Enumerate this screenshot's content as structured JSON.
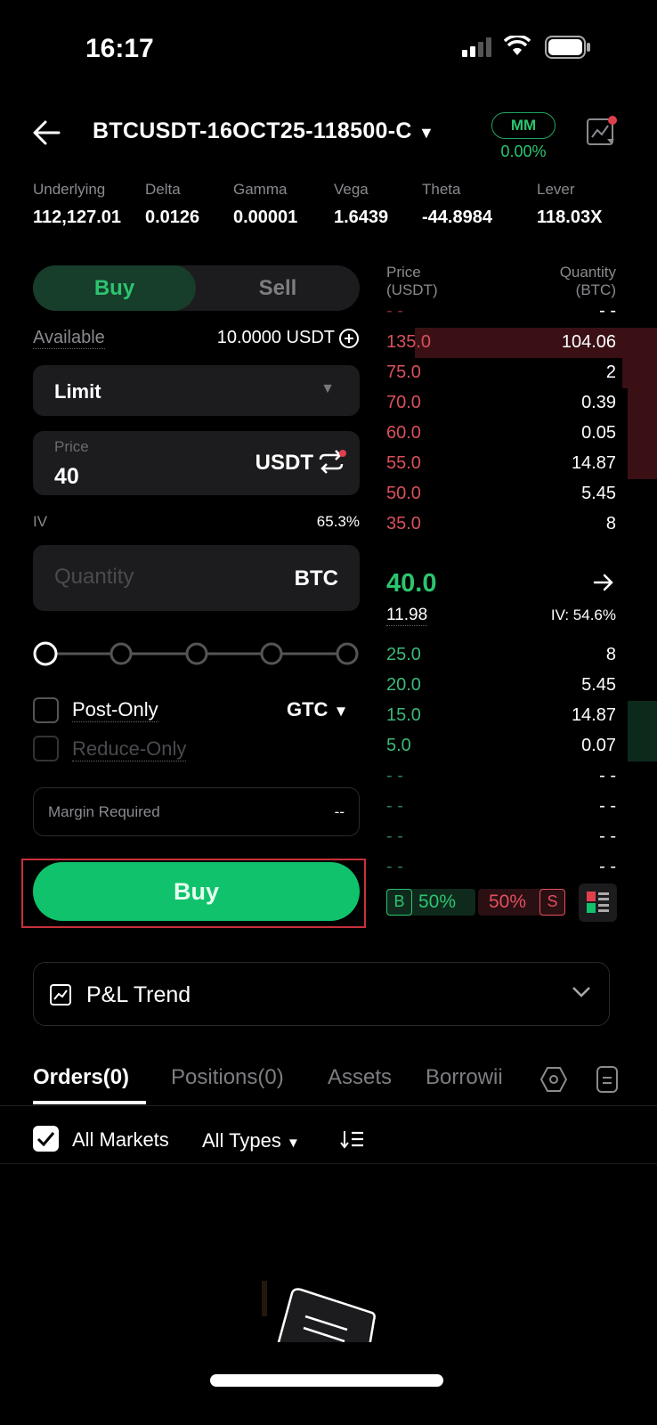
{
  "status_bar": {
    "time": "16:17"
  },
  "header": {
    "title": "BTCUSDT-16OCT25-118500-C",
    "mm_label": "MM",
    "mm_value": "0.00%"
  },
  "greeks": [
    {
      "label": "Underlying",
      "value": "112,127.01"
    },
    {
      "label": "Delta",
      "value": "0.0126"
    },
    {
      "label": "Gamma",
      "value": "0.00001"
    },
    {
      "label": "Vega",
      "value": "1.6439"
    },
    {
      "label": "Theta",
      "value": "-44.8984"
    },
    {
      "label": "Lever",
      "value": "118.03X"
    }
  ],
  "order_form": {
    "buy_tab": "Buy",
    "sell_tab": "Sell",
    "available_label": "Available",
    "available_value": "10.0000 USDT",
    "order_type": "Limit",
    "price_label": "Price",
    "price_value": "40",
    "price_unit": "USDT",
    "iv_label": "IV",
    "iv_value": "65.3%",
    "quantity_placeholder": "Quantity",
    "quantity_unit": "BTC",
    "slider_percent": 0,
    "post_only": "Post-Only",
    "reduce_only": "Reduce-Only",
    "tif": "GTC",
    "margin_label": "Margin Required",
    "margin_value": "--",
    "submit": "Buy"
  },
  "orderbook": {
    "price_header": "Price\n(USDT)",
    "qty_header": "Quantity\n(BTC)",
    "asks": [
      {
        "price": "- -",
        "qty": "- -",
        "depth": 0
      },
      {
        "price": "135.0",
        "qty": "104.06",
        "depth": 1.0
      },
      {
        "price": "75.0",
        "qty": "2",
        "depth": 0.19
      },
      {
        "price": "70.0",
        "qty": "0.39",
        "depth": 0.17
      },
      {
        "price": "60.0",
        "qty": "0.05",
        "depth": 0.17
      },
      {
        "price": "55.0",
        "qty": "14.87",
        "depth": 0.17
      },
      {
        "price": "50.0",
        "qty": "5.45",
        "depth": 0.05
      },
      {
        "price": "35.0",
        "qty": "8",
        "depth": 0.01
      }
    ],
    "last_price": "40.0",
    "mark_price": "11.98",
    "iv": "IV: 54.6%",
    "bids": [
      {
        "price": "25.0",
        "qty": "8",
        "depth": 0.01
      },
      {
        "price": "20.0",
        "qty": "5.45",
        "depth": 0.05
      },
      {
        "price": "15.0",
        "qty": "14.87",
        "depth": 0.17
      },
      {
        "price": "5.0",
        "qty": "0.07",
        "depth": 0.17
      },
      {
        "price": "- -",
        "qty": "- -",
        "depth": 0
      },
      {
        "price": "- -",
        "qty": "- -",
        "depth": 0
      },
      {
        "price": "- -",
        "qty": "- -",
        "depth": 0
      },
      {
        "price": "- -",
        "qty": "- -",
        "depth": 0
      }
    ],
    "buy_ratio_label": "B",
    "buy_ratio": "50%",
    "sell_ratio": "50%",
    "sell_ratio_label": "S"
  },
  "pnl": {
    "label": "P&L Trend"
  },
  "bottom_tabs": [
    {
      "label": "Orders(0)",
      "active": true
    },
    {
      "label": "Positions(0)"
    },
    {
      "label": "Assets"
    },
    {
      "label": "Borrowii"
    }
  ],
  "filters": {
    "all_markets": "All Markets",
    "all_types": "All Types"
  },
  "colors": {
    "green": "#2cc46f",
    "red": "#e0515e",
    "buy_button": "#10c26b",
    "bg": "#000000",
    "panel": "#1c1c1f"
  }
}
